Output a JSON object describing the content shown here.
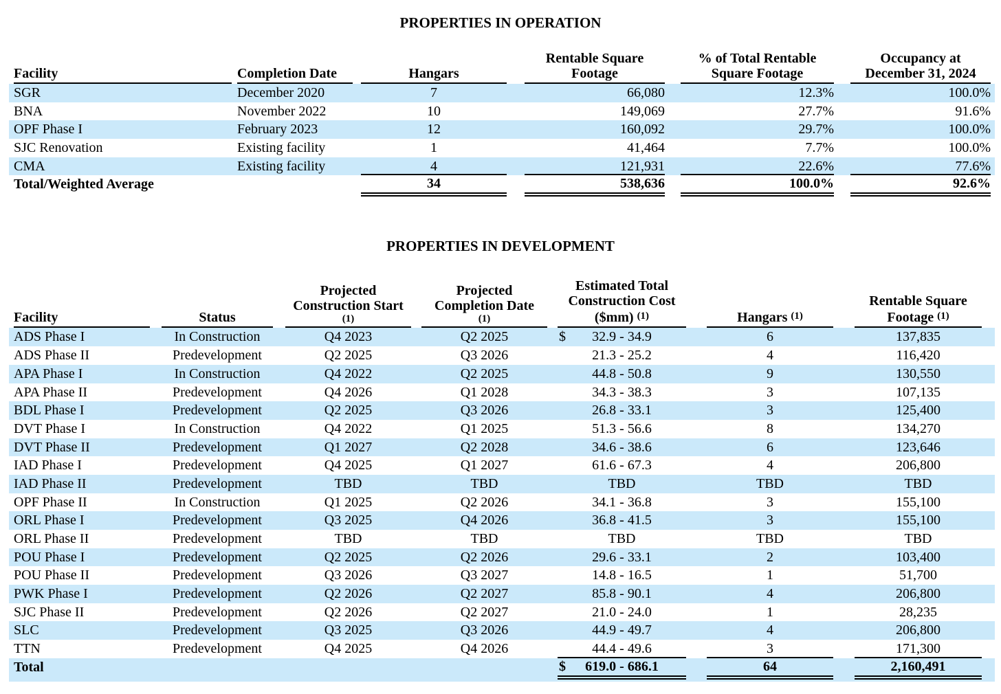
{
  "page": {
    "background_color": "#ffffff",
    "stripe_color": "#cbe9fa",
    "text_color": "#000000"
  },
  "operation_table": {
    "title": "PROPERTIES IN OPERATION",
    "columns": [
      {
        "key": "facility",
        "label_lines": [
          "Facility"
        ]
      },
      {
        "key": "completion-date",
        "label_lines": [
          "Completion Date"
        ]
      },
      {
        "key": "hangars",
        "label_lines": [
          "Hangars"
        ]
      },
      {
        "key": "rentable-square-footage",
        "label_lines": [
          "Rentable Square",
          "Footage"
        ]
      },
      {
        "key": "pct-of-total-rentable",
        "label_lines": [
          "% of Total Rentable",
          "Square Footage"
        ]
      },
      {
        "key": "occupancy",
        "label_lines": [
          "Occupancy at",
          "December 31, 2024"
        ]
      }
    ],
    "rows": [
      [
        "SGR",
        "December 2020",
        "7",
        "66,080",
        "12.3%",
        "100.0%"
      ],
      [
        "BNA",
        "November 2022",
        "10",
        "149,069",
        "27.7%",
        "91.6%"
      ],
      [
        "OPF Phase I",
        "February 2023",
        "12",
        "160,092",
        "29.7%",
        "100.0%"
      ],
      [
        "SJC Renovation",
        "Existing facility",
        "1",
        "41,464",
        "7.7%",
        "100.0%"
      ],
      [
        "CMA",
        "Existing facility",
        "4",
        "121,931",
        "22.6%",
        "77.6%"
      ]
    ],
    "total_row": [
      "Total/Weighted Average",
      "",
      "34",
      "538,636",
      "100.0%",
      "92.6%"
    ]
  },
  "development_table": {
    "title": "PROPERTIES IN DEVELOPMENT",
    "cost_dollar_prefix": "$",
    "columns": [
      {
        "key": "facility",
        "label_lines": [
          "Facility"
        ]
      },
      {
        "key": "status",
        "label_lines": [
          "Status"
        ]
      },
      {
        "key": "projected-construction-start",
        "label_lines": [
          "Projected",
          "Construction Start",
          "(1)"
        ]
      },
      {
        "key": "projected-completion-date",
        "label_lines": [
          "Projected",
          "Completion Date",
          "(1)"
        ]
      },
      {
        "key": "estimated-total-construction-cost",
        "label_lines": [
          "Estimated Total",
          "Construction Cost",
          "($mm) "
        ],
        "sup_note": "(1)"
      },
      {
        "key": "hangars",
        "label_lines": [
          "Hangars "
        ],
        "sup_note": "(1)"
      },
      {
        "key": "rentable-square-footage",
        "label_lines": [
          "Rentable Square",
          "Footage "
        ],
        "sup_note": "(1)"
      }
    ],
    "rows": [
      [
        "ADS Phase I",
        "In Construction",
        "Q4 2023",
        "Q2 2025",
        "32.9 - 34.9",
        "6",
        "137,835"
      ],
      [
        "ADS Phase II",
        "Predevelopment",
        "Q2 2025",
        "Q3 2026",
        "21.3 - 25.2",
        "4",
        "116,420"
      ],
      [
        "APA Phase I",
        "In Construction",
        "Q4 2022",
        "Q2 2025",
        "44.8 - 50.8",
        "9",
        "130,550"
      ],
      [
        "APA Phase II",
        "Predevelopment",
        "Q4 2026",
        "Q1 2028",
        "34.3 - 38.3",
        "3",
        "107,135"
      ],
      [
        "BDL Phase I",
        "Predevelopment",
        "Q2 2025",
        "Q3 2026",
        "26.8 - 33.1",
        "3",
        "125,400"
      ],
      [
        "DVT Phase I",
        "In Construction",
        "Q4 2022",
        "Q1 2025",
        "51.3 - 56.6",
        "8",
        "134,270"
      ],
      [
        "DVT Phase II",
        "Predevelopment",
        "Q1 2027",
        "Q2 2028",
        "34.6 - 38.6",
        "6",
        "123,646"
      ],
      [
        "IAD Phase I",
        "Predevelopment",
        "Q4 2025",
        "Q1 2027",
        "61.6 - 67.3",
        "4",
        "206,800"
      ],
      [
        "IAD Phase II",
        "Predevelopment",
        "TBD",
        "TBD",
        "TBD",
        "TBD",
        "TBD"
      ],
      [
        "OPF Phase II",
        "In Construction",
        "Q1 2025",
        "Q2 2026",
        "34.1 - 36.8",
        "3",
        "155,100"
      ],
      [
        "ORL Phase I",
        "Predevelopment",
        "Q3 2025",
        "Q4 2026",
        "36.8 - 41.5",
        "3",
        "155,100"
      ],
      [
        "ORL Phase II",
        "Predevelopment",
        "TBD",
        "TBD",
        "TBD",
        "TBD",
        "TBD"
      ],
      [
        "POU Phase I",
        "Predevelopment",
        "Q2 2025",
        "Q2 2026",
        "29.6 - 33.1",
        "2",
        "103,400"
      ],
      [
        "POU Phase II",
        "Predevelopment",
        "Q3 2026",
        "Q3 2027",
        "14.8 - 16.5",
        "1",
        "51,700"
      ],
      [
        "PWK Phase I",
        "Predevelopment",
        "Q2 2026",
        "Q2 2027",
        "85.8 - 90.1",
        "4",
        "206,800"
      ],
      [
        "SJC Phase II",
        "Predevelopment",
        "Q2 2026",
        "Q2 2027",
        "21.0 - 24.0",
        "1",
        "28,235"
      ],
      [
        "SLC",
        "Predevelopment",
        "Q3 2025",
        "Q3 2026",
        "44.9 - 49.7",
        "4",
        "206,800"
      ],
      [
        "TTN",
        "Predevelopment",
        "Q4 2025",
        "Q4 2026",
        "44.4 - 49.6",
        "3",
        "171,300"
      ]
    ],
    "total_row": [
      "Total",
      "",
      "",
      "",
      "619.0 - 686.1",
      "64",
      "2,160,491"
    ]
  }
}
